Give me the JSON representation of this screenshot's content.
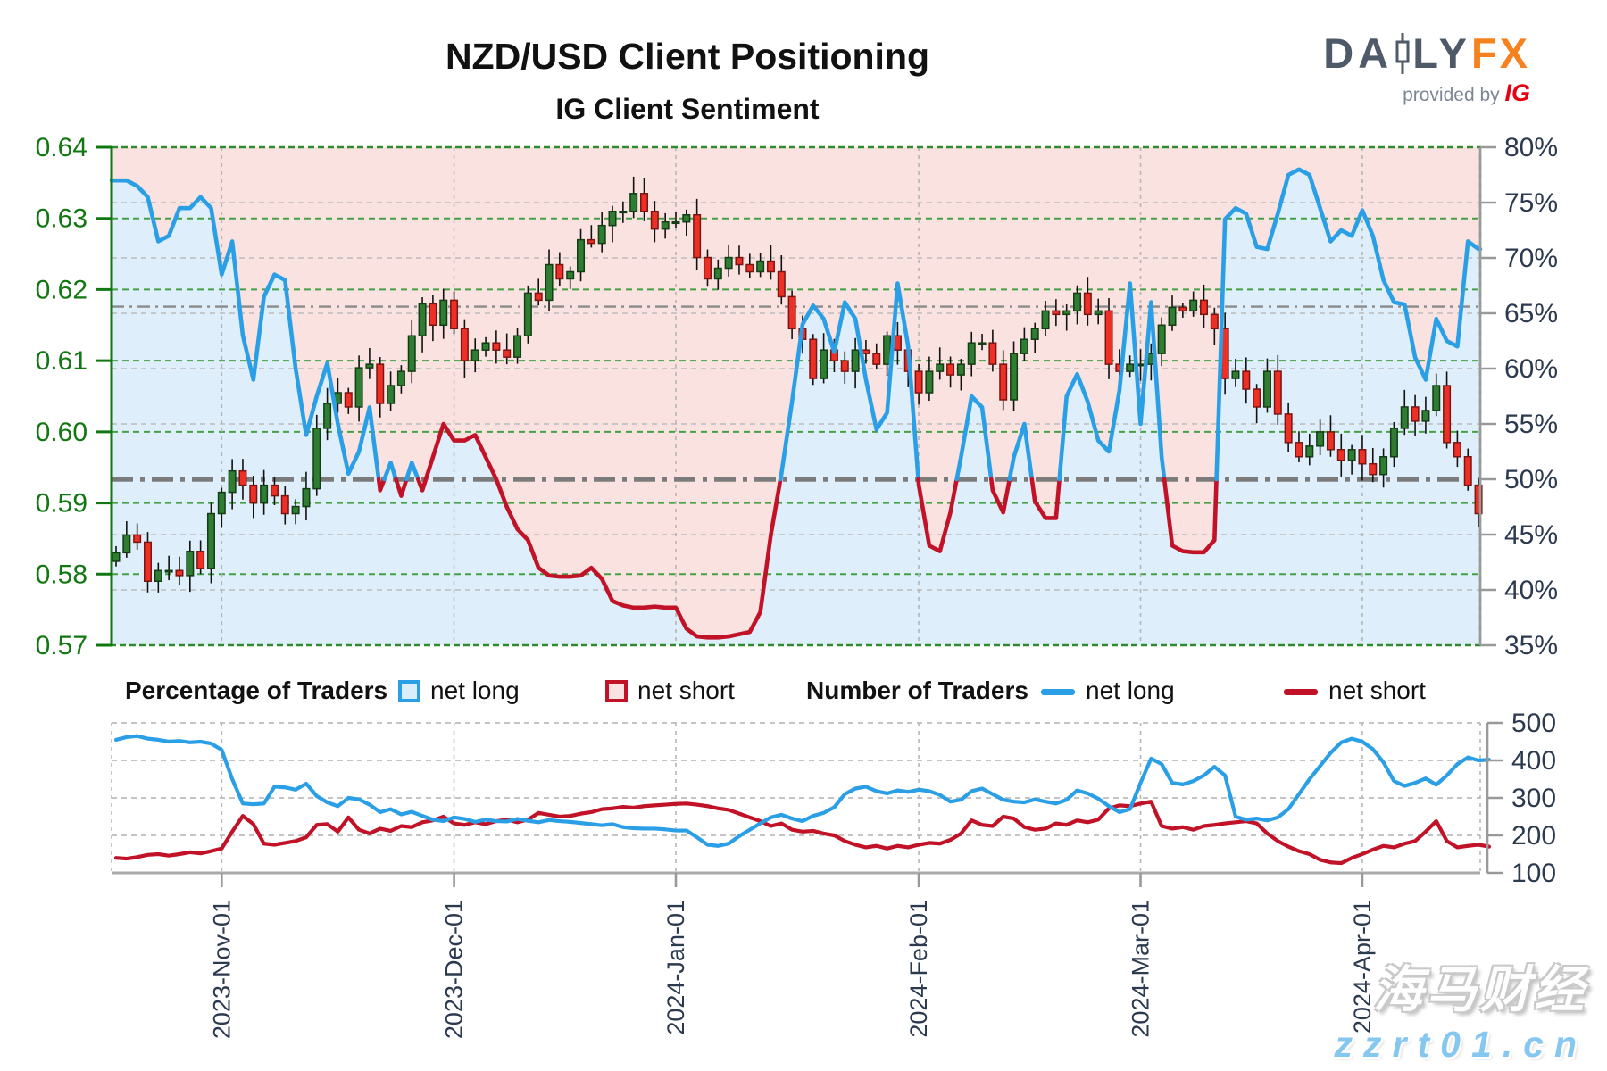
{
  "header": {
    "title": "NZD/USD Client Positioning",
    "logo": {
      "part1": "DA",
      "part2": "LY",
      "accent": "FX",
      "provided_by": "provided by",
      "ig": "IG"
    }
  },
  "subtitle": "IG Client Sentiment",
  "legend": {
    "pct_header": "Percentage of Traders",
    "count_header": "Number of Traders",
    "net_long": "net long",
    "net_short": "net short"
  },
  "watermark": {
    "line1": "海马财经",
    "line2": "zzrt01.cn"
  },
  "colors": {
    "sentiment_blue": "#2b9fe6",
    "sentiment_red": "#c11228",
    "fill_pink": "#f9e2e0",
    "fill_blue": "#deeefa",
    "candle_green": "#2f7d32",
    "candle_green_edge": "#143c14",
    "candle_red": "#ee2f26",
    "candle_red_edge": "#7a1512",
    "wick": "#111111",
    "price_axis_green": "#117711",
    "grid_green": "#44a044",
    "grid_gray": "#bcbcbc",
    "axis_gray": "#999999",
    "axis_label": "#2c3a50",
    "ref_fifty": "#7b7b7b",
    "ref_thin": "#8a8a8a"
  },
  "chart_data": [
    {
      "type": "candlestick+line",
      "title": "IG Client Sentiment",
      "price_axis": {
        "side": "left",
        "min": 0.57,
        "max": 0.64,
        "tick_step": 0.01
      },
      "pct_axis": {
        "side": "right",
        "min": 35,
        "max": 80,
        "tick_step": 5,
        "unit": "%"
      },
      "x_axis": {
        "unit": "trading-day index",
        "month_ticks": [
          {
            "label": "2023-Nov-01",
            "index": 10
          },
          {
            "label": "2023-Dec-01",
            "index": 32
          },
          {
            "label": "2024-Jan-01",
            "index": 53
          },
          {
            "label": "2024-Feb-01",
            "index": 76
          },
          {
            "label": "2024-Mar-01",
            "index": 97
          },
          {
            "label": "2024-Apr-01",
            "index": 118
          }
        ]
      },
      "reference_lines": [
        {
          "value_pct": 50,
          "style": "heavy-dashdot"
        },
        {
          "value_pct": 65.6,
          "style": "thin-dashdot"
        }
      ],
      "shading": {
        "above_line": "net-short share (pink)",
        "below_line": "net-long share (light blue)"
      },
      "series": {
        "price_close": [
          0.583,
          0.5855,
          0.5845,
          0.579,
          0.5805,
          0.5805,
          0.5798,
          0.5832,
          0.5808,
          0.5885,
          0.5915,
          0.5945,
          0.5925,
          0.59,
          0.5925,
          0.591,
          0.5885,
          0.5895,
          0.592,
          0.6005,
          0.604,
          0.6055,
          0.6035,
          0.609,
          0.6095,
          0.604,
          0.6065,
          0.6085,
          0.6135,
          0.618,
          0.615,
          0.6185,
          0.6145,
          0.61,
          0.6115,
          0.6125,
          0.6115,
          0.6105,
          0.6135,
          0.6195,
          0.6185,
          0.6235,
          0.6215,
          0.6225,
          0.627,
          0.6265,
          0.629,
          0.631,
          0.631,
          0.6335,
          0.631,
          0.6285,
          0.6295,
          0.6295,
          0.6305,
          0.6245,
          0.6215,
          0.623,
          0.6245,
          0.6235,
          0.6225,
          0.624,
          0.6225,
          0.619,
          0.6145,
          0.613,
          0.6075,
          0.6115,
          0.61,
          0.6085,
          0.6115,
          0.611,
          0.6095,
          0.6135,
          0.6115,
          0.6085,
          0.6055,
          0.6085,
          0.6095,
          0.608,
          0.6095,
          0.6125,
          0.6125,
          0.6095,
          0.6045,
          0.611,
          0.613,
          0.6145,
          0.617,
          0.6165,
          0.617,
          0.6195,
          0.6165,
          0.617,
          0.6095,
          0.6085,
          0.6095,
          0.6095,
          0.611,
          0.615,
          0.6175,
          0.617,
          0.6185,
          0.6165,
          0.6145,
          0.6075,
          0.6085,
          0.606,
          0.6035,
          0.6085,
          0.6025,
          0.5985,
          0.5965,
          0.598,
          0.6,
          0.5975,
          0.596,
          0.5975,
          0.5955,
          0.594,
          0.5965,
          0.6005,
          0.6035,
          0.6015,
          0.603,
          0.6065,
          0.5985,
          0.5965,
          0.5925,
          0.5885
        ],
        "net_long_pct": [
          77,
          77,
          76.5,
          75.5,
          71.5,
          72,
          74.5,
          74.5,
          75.5,
          74.5,
          68.5,
          71.5,
          63,
          59,
          66.5,
          68.5,
          68,
          60,
          54,
          57.5,
          60.5,
          55,
          50.5,
          52.5,
          56.5,
          49,
          51.5,
          48.5,
          51.5,
          49,
          52,
          55,
          53.5,
          53.5,
          54,
          52,
          50,
          47.5,
          45.5,
          44.5,
          42,
          41.3,
          41.2,
          41.2,
          41.3,
          42,
          41,
          39,
          38.6,
          38.4,
          38.4,
          38.5,
          38.4,
          38.4,
          36.5,
          35.8,
          35.7,
          35.7,
          35.8,
          36,
          36.2,
          38,
          45,
          50.5,
          57,
          64,
          65.7,
          64.5,
          61.5,
          66,
          64.5,
          59,
          54.5,
          56,
          67.7,
          62,
          49.5,
          44,
          43.5,
          47,
          52,
          57.5,
          56.5,
          49,
          47,
          52,
          55,
          48,
          46.5,
          46.5,
          57.5,
          59.5,
          57,
          53.5,
          52.5,
          58,
          67.7,
          55,
          66,
          52,
          44,
          43.5,
          43.4,
          43.4,
          44.5,
          73.5,
          74.5,
          74,
          71,
          70.8,
          74,
          77.5,
          78,
          77.5,
          74.5,
          71.5,
          72.5,
          72,
          74.3,
          72,
          68,
          66,
          65.8,
          61,
          59,
          64.5,
          62.5,
          62,
          71.5,
          70.8
        ]
      }
    },
    {
      "type": "line",
      "y_axis": {
        "side": "right",
        "min": 100,
        "max": 500,
        "tick_step": 100
      },
      "series": [
        {
          "name": "net long",
          "color": "#2b9fe6",
          "values": [
            455,
            462,
            465,
            458,
            455,
            450,
            452,
            448,
            450,
            445,
            428,
            350,
            285,
            283,
            285,
            330,
            328,
            322,
            338,
            305,
            288,
            278,
            300,
            296,
            282,
            262,
            270,
            256,
            263,
            252,
            242,
            238,
            248,
            244,
            236,
            242,
            238,
            237,
            244,
            239,
            235,
            241,
            238,
            236,
            233,
            230,
            227,
            230,
            222,
            219,
            218,
            218,
            216,
            213,
            213,
            195,
            175,
            172,
            178,
            198,
            215,
            232,
            248,
            255,
            245,
            238,
            252,
            260,
            275,
            310,
            325,
            330,
            318,
            312,
            320,
            316,
            322,
            318,
            308,
            290,
            295,
            318,
            325,
            310,
            295,
            290,
            288,
            296,
            290,
            285,
            295,
            320,
            312,
            298,
            278,
            262,
            270,
            340,
            405,
            390,
            340,
            336,
            345,
            360,
            383,
            360,
            250,
            242,
            245,
            240,
            248,
            270,
            310,
            350,
            385,
            420,
            448,
            458,
            450,
            430,
            395,
            345,
            332,
            340,
            352,
            335,
            360,
            390,
            408,
            400,
            402
          ]
        },
        {
          "name": "net short",
          "color": "#c11228",
          "values": [
            140,
            138,
            142,
            148,
            150,
            146,
            150,
            155,
            152,
            158,
            165,
            210,
            252,
            230,
            178,
            175,
            180,
            185,
            195,
            228,
            230,
            210,
            248,
            215,
            205,
            218,
            212,
            225,
            222,
            235,
            240,
            250,
            232,
            228,
            235,
            230,
            238,
            242,
            235,
            242,
            260,
            255,
            250,
            252,
            258,
            262,
            270,
            272,
            276,
            274,
            278,
            280,
            282,
            284,
            285,
            282,
            278,
            272,
            268,
            258,
            248,
            238,
            225,
            232,
            215,
            210,
            212,
            205,
            200,
            185,
            175,
            168,
            172,
            165,
            172,
            168,
            175,
            180,
            178,
            188,
            205,
            240,
            228,
            225,
            250,
            245,
            222,
            215,
            218,
            232,
            228,
            240,
            235,
            242,
            272,
            280,
            278,
            285,
            290,
            225,
            218,
            222,
            215,
            225,
            228,
            232,
            235,
            238,
            232,
            205,
            185,
            170,
            158,
            150,
            135,
            128,
            126,
            140,
            150,
            162,
            172,
            168,
            178,
            185,
            210,
            238,
            185,
            168,
            172,
            175,
            170
          ]
        }
      ]
    }
  ]
}
